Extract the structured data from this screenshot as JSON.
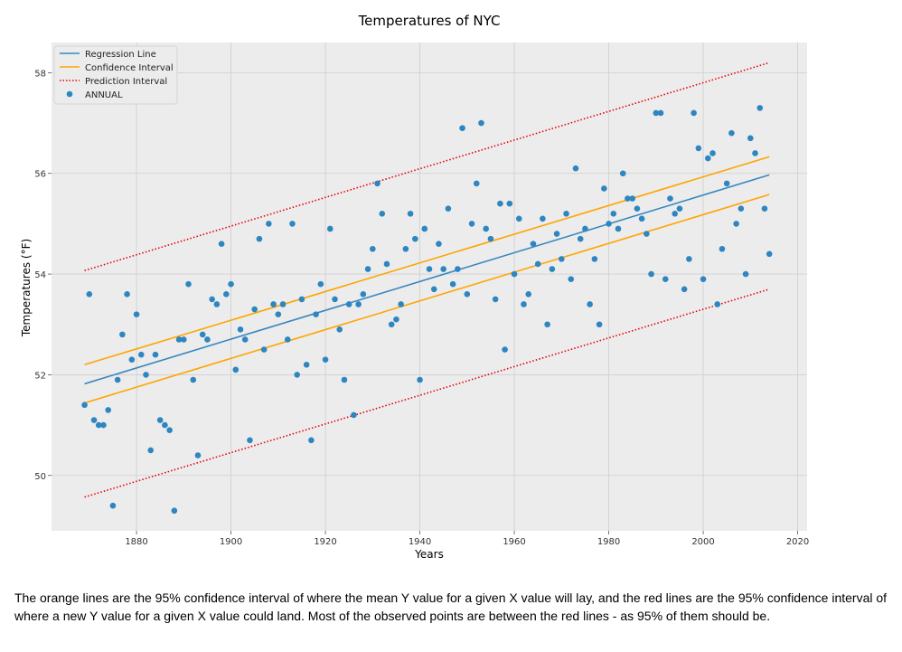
{
  "chart_data": {
    "type": "scatter",
    "title": "Temperatures of NYC",
    "xlabel": "Years",
    "ylabel": "Temperatures (°F)",
    "xlim": [
      1862,
      2022
    ],
    "ylim": [
      48.9,
      58.6
    ],
    "xticks": [
      1880,
      1900,
      1920,
      1940,
      1960,
      1980,
      2000,
      2020
    ],
    "yticks": [
      50,
      52,
      54,
      56,
      58
    ],
    "grid": true,
    "legend_placement": "top-left",
    "legend": [
      "Regression Line",
      "Confidence Interval",
      "Prediction Interval",
      "ANNUAL"
    ],
    "colors": {
      "background": "#ececec",
      "grid": "#cfcfcf",
      "regression": "#3a88c0",
      "confidence": "#ffa500",
      "prediction": "#e8000b",
      "points": "#2e86c1"
    },
    "series": [
      {
        "name": "ANNUAL",
        "points": [
          [
            1869,
            51.4
          ],
          [
            1870,
            53.6
          ],
          [
            1871,
            51.1
          ],
          [
            1872,
            51.0
          ],
          [
            1873,
            51.0
          ],
          [
            1874,
            51.3
          ],
          [
            1875,
            49.4
          ],
          [
            1876,
            51.9
          ],
          [
            1877,
            52.8
          ],
          [
            1878,
            53.6
          ],
          [
            1879,
            52.3
          ],
          [
            1880,
            53.2
          ],
          [
            1881,
            52.4
          ],
          [
            1882,
            52.0
          ],
          [
            1883,
            50.5
          ],
          [
            1884,
            52.4
          ],
          [
            1885,
            51.1
          ],
          [
            1886,
            51.0
          ],
          [
            1887,
            50.9
          ],
          [
            1888,
            49.3
          ],
          [
            1889,
            52.7
          ],
          [
            1890,
            52.7
          ],
          [
            1891,
            53.8
          ],
          [
            1892,
            51.9
          ],
          [
            1893,
            50.4
          ],
          [
            1894,
            52.8
          ],
          [
            1895,
            52.7
          ],
          [
            1896,
            53.5
          ],
          [
            1897,
            53.4
          ],
          [
            1898,
            54.6
          ],
          [
            1899,
            53.6
          ],
          [
            1900,
            53.8
          ],
          [
            1901,
            52.1
          ],
          [
            1902,
            52.9
          ],
          [
            1903,
            52.7
          ],
          [
            1904,
            50.7
          ],
          [
            1905,
            53.3
          ],
          [
            1906,
            54.7
          ],
          [
            1907,
            52.5
          ],
          [
            1908,
            55.0
          ],
          [
            1909,
            53.4
          ],
          [
            1910,
            53.2
          ],
          [
            1911,
            53.4
          ],
          [
            1912,
            52.7
          ],
          [
            1913,
            55.0
          ],
          [
            1914,
            52.0
          ],
          [
            1915,
            53.5
          ],
          [
            1916,
            52.2
          ],
          [
            1917,
            50.7
          ],
          [
            1918,
            53.2
          ],
          [
            1919,
            53.8
          ],
          [
            1920,
            52.3
          ],
          [
            1921,
            54.9
          ],
          [
            1922,
            53.5
          ],
          [
            1923,
            52.9
          ],
          [
            1924,
            51.9
          ],
          [
            1925,
            53.4
          ],
          [
            1926,
            51.2
          ],
          [
            1927,
            53.4
          ],
          [
            1928,
            53.6
          ],
          [
            1929,
            54.1
          ],
          [
            1930,
            54.5
          ],
          [
            1931,
            55.8
          ],
          [
            1932,
            55.2
          ],
          [
            1933,
            54.2
          ],
          [
            1934,
            53.0
          ],
          [
            1935,
            53.1
          ],
          [
            1936,
            53.4
          ],
          [
            1937,
            54.5
          ],
          [
            1938,
            55.2
          ],
          [
            1939,
            54.7
          ],
          [
            1940,
            51.9
          ],
          [
            1941,
            54.9
          ],
          [
            1942,
            54.1
          ],
          [
            1943,
            53.7
          ],
          [
            1944,
            54.6
          ],
          [
            1945,
            54.1
          ],
          [
            1946,
            55.3
          ],
          [
            1947,
            53.8
          ],
          [
            1948,
            54.1
          ],
          [
            1949,
            56.9
          ],
          [
            1950,
            53.6
          ],
          [
            1951,
            55.0
          ],
          [
            1952,
            55.8
          ],
          [
            1953,
            57.0
          ],
          [
            1954,
            54.9
          ],
          [
            1955,
            54.7
          ],
          [
            1956,
            53.5
          ],
          [
            1957,
            55.4
          ],
          [
            1958,
            52.5
          ],
          [
            1959,
            55.4
          ],
          [
            1960,
            54.0
          ],
          [
            1961,
            55.1
          ],
          [
            1962,
            53.4
          ],
          [
            1963,
            53.6
          ],
          [
            1964,
            54.6
          ],
          [
            1965,
            54.2
          ],
          [
            1966,
            55.1
          ],
          [
            1967,
            53.0
          ],
          [
            1968,
            54.1
          ],
          [
            1969,
            54.8
          ],
          [
            1970,
            54.3
          ],
          [
            1971,
            55.2
          ],
          [
            1972,
            53.9
          ],
          [
            1973,
            56.1
          ],
          [
            1974,
            54.7
          ],
          [
            1975,
            54.9
          ],
          [
            1976,
            53.4
          ],
          [
            1977,
            54.3
          ],
          [
            1978,
            53.0
          ],
          [
            1979,
            55.7
          ],
          [
            1980,
            55.0
          ],
          [
            1981,
            55.2
          ],
          [
            1982,
            54.9
          ],
          [
            1983,
            56.0
          ],
          [
            1984,
            55.5
          ],
          [
            1985,
            55.5
          ],
          [
            1986,
            55.3
          ],
          [
            1987,
            55.1
          ],
          [
            1988,
            54.8
          ],
          [
            1989,
            54.0
          ],
          [
            1990,
            57.2
          ],
          [
            1991,
            57.2
          ],
          [
            1992,
            53.9
          ],
          [
            1993,
            55.5
          ],
          [
            1994,
            55.2
          ],
          [
            1995,
            55.3
          ],
          [
            1996,
            53.7
          ],
          [
            1997,
            54.3
          ],
          [
            1998,
            57.2
          ],
          [
            1999,
            56.5
          ],
          [
            2000,
            53.9
          ],
          [
            2001,
            56.3
          ],
          [
            2002,
            56.4
          ],
          [
            2003,
            53.4
          ],
          [
            2004,
            54.5
          ],
          [
            2005,
            55.8
          ],
          [
            2006,
            56.8
          ],
          [
            2007,
            55.0
          ],
          [
            2008,
            55.3
          ],
          [
            2009,
            54.0
          ],
          [
            2010,
            56.7
          ],
          [
            2011,
            56.4
          ],
          [
            2012,
            57.3
          ],
          [
            2013,
            55.3
          ],
          [
            2014,
            54.4
          ]
        ]
      },
      {
        "name": "Regression Line",
        "x": [
          1869,
          2014
        ],
        "y": [
          51.82,
          55.97
        ]
      },
      {
        "name": "Confidence Interval",
        "upper": {
          "x": [
            1869,
            2014
          ],
          "y": [
            52.2,
            56.33
          ]
        },
        "lower": {
          "x": [
            1869,
            2014
          ],
          "y": [
            51.44,
            55.58
          ]
        }
      },
      {
        "name": "Prediction Interval",
        "upper": {
          "x": [
            1869,
            2014
          ],
          "y": [
            54.07,
            58.2
          ]
        },
        "lower": {
          "x": [
            1869,
            2014
          ],
          "y": [
            49.57,
            53.7
          ]
        }
      }
    ]
  },
  "caption": "The orange lines are the 95% confidence interval of where the mean Y value for a given X value will lay, and the red lines are the 95% confidence interval of where a new Y value for a given X value could land. Most of the observed points are between the red lines - as 95% of them should be."
}
